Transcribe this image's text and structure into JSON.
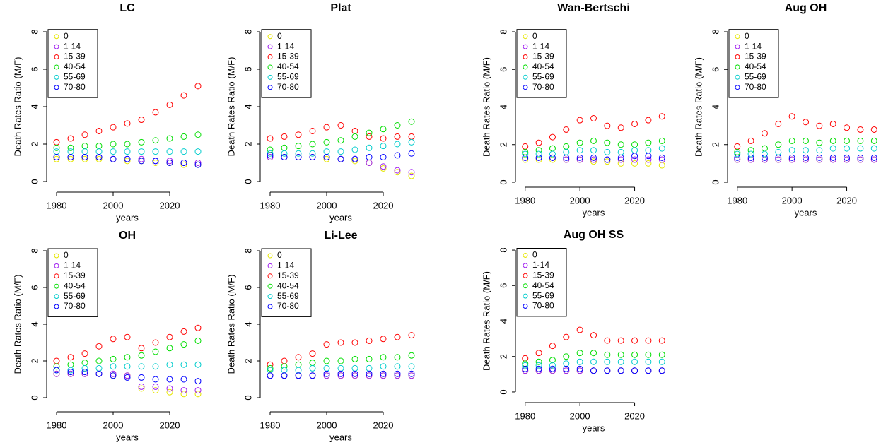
{
  "chart_data": [
    {
      "type": "scatter",
      "title": "LC",
      "xlabel": "years",
      "ylabel": "Death Rates Ratio (M/F)",
      "legend": "topleft",
      "xlim": [
        1978,
        2032
      ],
      "ylim": [
        -0.5,
        8.5
      ],
      "xticks": [
        1980,
        2000,
        2020
      ],
      "yticks": [
        0,
        2,
        4,
        6,
        8
      ],
      "x": [
        1980,
        1985,
        1990,
        1995,
        2000,
        2005,
        2010,
        2015,
        2020,
        2025,
        2030
      ],
      "series": [
        {
          "name": "0",
          "color": "#e6e600",
          "values": [
            1.2,
            1.2,
            1.2,
            1.2,
            1.2,
            1.1,
            1.1,
            1.0,
            1.0,
            0.9,
            0.9
          ]
        },
        {
          "name": "1-14",
          "color": "#a020f0",
          "values": [
            1.3,
            1.3,
            1.3,
            1.3,
            1.2,
            1.2,
            1.2,
            1.1,
            1.1,
            1.0,
            1.0
          ]
        },
        {
          "name": "15-39",
          "color": "#ff0000",
          "values": [
            2.1,
            2.3,
            2.5,
            2.7,
            2.9,
            3.1,
            3.3,
            3.7,
            4.1,
            4.6,
            5.1
          ]
        },
        {
          "name": "40-54",
          "color": "#00dd00",
          "values": [
            1.8,
            1.8,
            1.9,
            1.9,
            2.0,
            2.0,
            2.1,
            2.2,
            2.3,
            2.4,
            2.5
          ]
        },
        {
          "name": "55-69",
          "color": "#00cccc",
          "values": [
            1.6,
            1.6,
            1.6,
            1.6,
            1.6,
            1.6,
            1.6,
            1.6,
            1.6,
            1.6,
            1.6
          ]
        },
        {
          "name": "70-80",
          "color": "#0000ff",
          "values": [
            1.3,
            1.3,
            1.3,
            1.3,
            1.2,
            1.2,
            1.1,
            1.1,
            1.0,
            1.0,
            0.9
          ]
        }
      ]
    },
    {
      "type": "scatter",
      "title": "Plat",
      "xlabel": "years",
      "ylabel": "Death Rates Ratio (M/F)",
      "legend": "topleft",
      "xlim": [
        1978,
        2032
      ],
      "ylim": [
        -0.5,
        8.5
      ],
      "xticks": [
        1980,
        2000,
        2020
      ],
      "yticks": [
        0,
        2,
        4,
        6,
        8
      ],
      "x": [
        1980,
        1985,
        1990,
        1995,
        2000,
        2005,
        2010,
        2015,
        2020,
        2025,
        2030
      ],
      "series": [
        {
          "name": "0",
          "color": "#e6e600",
          "values": [
            1.3,
            1.3,
            1.3,
            1.3,
            1.2,
            1.2,
            1.1,
            1.0,
            0.7,
            0.5,
            0.3
          ]
        },
        {
          "name": "1-14",
          "color": "#a020f0",
          "values": [
            1.3,
            1.3,
            1.3,
            1.3,
            1.3,
            1.2,
            1.2,
            1.0,
            0.8,
            0.6,
            0.5
          ]
        },
        {
          "name": "15-39",
          "color": "#ff0000",
          "values": [
            2.3,
            2.4,
            2.5,
            2.7,
            2.9,
            3.0,
            2.7,
            2.4,
            2.3,
            2.4,
            2.4
          ]
        },
        {
          "name": "40-54",
          "color": "#00dd00",
          "values": [
            1.7,
            1.8,
            1.9,
            2.0,
            2.1,
            2.2,
            2.4,
            2.6,
            2.8,
            3.0,
            3.2
          ]
        },
        {
          "name": "55-69",
          "color": "#00cccc",
          "values": [
            1.5,
            1.5,
            1.5,
            1.5,
            1.6,
            1.6,
            1.7,
            1.8,
            1.9,
            2.0,
            2.1
          ]
        },
        {
          "name": "70-80",
          "color": "#0000ff",
          "values": [
            1.4,
            1.3,
            1.3,
            1.3,
            1.3,
            1.2,
            1.2,
            1.3,
            1.3,
            1.4,
            1.5
          ]
        }
      ]
    },
    {
      "type": "scatter",
      "title": "Wan-Bertschi",
      "xlabel": "years",
      "ylabel": "Death Rates Ratio (M/F)",
      "legend": "topleft",
      "xlim": [
        1978,
        2032
      ],
      "ylim": [
        -0.5,
        8.5
      ],
      "xticks": [
        1980,
        2000,
        2020
      ],
      "yticks": [
        0,
        2,
        4,
        6,
        8
      ],
      "x": [
        1980,
        1985,
        1990,
        1995,
        2000,
        2005,
        2010,
        2015,
        2020,
        2025,
        2030
      ],
      "series": [
        {
          "name": "0",
          "color": "#e6e600",
          "values": [
            1.2,
            1.2,
            1.2,
            1.2,
            1.2,
            1.1,
            1.1,
            1.0,
            1.0,
            1.0,
            0.9
          ]
        },
        {
          "name": "1-14",
          "color": "#a020f0",
          "values": [
            1.3,
            1.3,
            1.3,
            1.2,
            1.2,
            1.2,
            1.2,
            1.2,
            1.2,
            1.2,
            1.2
          ]
        },
        {
          "name": "15-39",
          "color": "#ff0000",
          "values": [
            1.9,
            2.1,
            2.4,
            2.8,
            3.3,
            3.4,
            3.0,
            2.9,
            3.1,
            3.3,
            3.5
          ]
        },
        {
          "name": "40-54",
          "color": "#00dd00",
          "values": [
            1.6,
            1.7,
            1.8,
            1.9,
            2.1,
            2.2,
            2.1,
            2.0,
            2.0,
            2.1,
            2.2
          ]
        },
        {
          "name": "55-69",
          "color": "#00cccc",
          "values": [
            1.5,
            1.5,
            1.5,
            1.6,
            1.7,
            1.7,
            1.6,
            1.6,
            1.7,
            1.7,
            1.8
          ]
        },
        {
          "name": "70-80",
          "color": "#0000ff",
          "values": [
            1.3,
            1.3,
            1.3,
            1.3,
            1.3,
            1.3,
            1.2,
            1.3,
            1.4,
            1.4,
            1.3
          ]
        }
      ]
    },
    {
      "type": "scatter",
      "title": "Aug OH",
      "xlabel": "years",
      "ylabel": "Death Rates Ratio (M/F)",
      "legend": "topleft",
      "xlim": [
        1978,
        2032
      ],
      "ylim": [
        -0.5,
        8.5
      ],
      "xticks": [
        1980,
        2000,
        2020
      ],
      "yticks": [
        0,
        2,
        4,
        6,
        8
      ],
      "x": [
        1980,
        1985,
        1990,
        1995,
        2000,
        2005,
        2010,
        2015,
        2020,
        2025,
        2030
      ],
      "series": [
        {
          "name": "0",
          "color": "#e6e600",
          "values": [
            1.2,
            1.2,
            1.2,
            1.2,
            1.2,
            1.2,
            1.2,
            1.2,
            1.2,
            1.2,
            1.2
          ]
        },
        {
          "name": "1-14",
          "color": "#a020f0",
          "values": [
            1.2,
            1.2,
            1.2,
            1.2,
            1.2,
            1.2,
            1.2,
            1.2,
            1.2,
            1.2,
            1.2
          ]
        },
        {
          "name": "15-39",
          "color": "#ff0000",
          "values": [
            1.9,
            2.2,
            2.6,
            3.1,
            3.5,
            3.2,
            3.0,
            3.1,
            2.9,
            2.8,
            2.8
          ]
        },
        {
          "name": "40-54",
          "color": "#00dd00",
          "values": [
            1.6,
            1.7,
            1.8,
            2.0,
            2.2,
            2.2,
            2.1,
            2.2,
            2.2,
            2.2,
            2.2
          ]
        },
        {
          "name": "55-69",
          "color": "#00cccc",
          "values": [
            1.5,
            1.5,
            1.5,
            1.6,
            1.7,
            1.7,
            1.7,
            1.8,
            1.8,
            1.8,
            1.8
          ]
        },
        {
          "name": "70-80",
          "color": "#0000ff",
          "values": [
            1.3,
            1.3,
            1.3,
            1.3,
            1.3,
            1.3,
            1.3,
            1.3,
            1.3,
            1.3,
            1.3
          ]
        }
      ]
    },
    {
      "type": "scatter",
      "title": "OH",
      "xlabel": "years",
      "ylabel": "Death Rates Ratio (M/F)",
      "legend": "topleft",
      "xlim": [
        1978,
        2032
      ],
      "ylim": [
        -0.5,
        8.5
      ],
      "xticks": [
        1980,
        2000,
        2020
      ],
      "yticks": [
        0,
        2,
        4,
        6,
        8
      ],
      "x": [
        1980,
        1985,
        1990,
        1995,
        2000,
        2005,
        2010,
        2015,
        2020,
        2025,
        2030
      ],
      "series": [
        {
          "name": "0",
          "color": "#e6e600",
          "values": [
            1.3,
            1.3,
            1.3,
            1.3,
            1.2,
            1.2,
            0.5,
            0.4,
            0.3,
            0.2,
            0.2
          ]
        },
        {
          "name": "1-14",
          "color": "#a020f0",
          "values": [
            1.3,
            1.3,
            1.3,
            1.3,
            1.3,
            1.2,
            0.6,
            0.6,
            0.5,
            0.4,
            0.4
          ]
        },
        {
          "name": "15-39",
          "color": "#ff0000",
          "values": [
            2.0,
            2.2,
            2.4,
            2.8,
            3.2,
            3.3,
            2.7,
            3.0,
            3.3,
            3.6,
            3.8
          ]
        },
        {
          "name": "40-54",
          "color": "#00dd00",
          "values": [
            1.7,
            1.8,
            1.9,
            2.0,
            2.1,
            2.2,
            2.3,
            2.5,
            2.7,
            2.9,
            3.1
          ]
        },
        {
          "name": "55-69",
          "color": "#00cccc",
          "values": [
            1.5,
            1.5,
            1.6,
            1.6,
            1.7,
            1.7,
            1.7,
            1.7,
            1.8,
            1.8,
            1.8
          ]
        },
        {
          "name": "70-80",
          "color": "#0000ff",
          "values": [
            1.5,
            1.4,
            1.4,
            1.3,
            1.2,
            1.1,
            1.1,
            1.0,
            1.0,
            1.0,
            0.9
          ]
        }
      ]
    },
    {
      "type": "scatter",
      "title": "Li-Lee",
      "xlabel": "years",
      "ylabel": "Death Rates Ratio (M/F)",
      "legend": "topleft",
      "xlim": [
        1978,
        2032
      ],
      "ylim": [
        -0.5,
        8.5
      ],
      "xticks": [
        1980,
        2000,
        2020
      ],
      "yticks": [
        0,
        2,
        4,
        6,
        8
      ],
      "x": [
        1980,
        1985,
        1990,
        1995,
        2000,
        2005,
        2010,
        2015,
        2020,
        2025,
        2030
      ],
      "series": [
        {
          "name": "0",
          "color": "#e6e600",
          "values": [
            1.2,
            1.2,
            1.2,
            1.2,
            1.2,
            1.2,
            1.2,
            1.2,
            1.2,
            1.2,
            1.2
          ]
        },
        {
          "name": "1-14",
          "color": "#a020f0",
          "values": [
            1.2,
            1.2,
            1.2,
            1.2,
            1.2,
            1.2,
            1.2,
            1.2,
            1.2,
            1.2,
            1.2
          ]
        },
        {
          "name": "15-39",
          "color": "#ff0000",
          "values": [
            1.8,
            2.0,
            2.2,
            2.4,
            2.9,
            3.0,
            3.0,
            3.1,
            3.2,
            3.3,
            3.4
          ]
        },
        {
          "name": "40-54",
          "color": "#00dd00",
          "values": [
            1.6,
            1.7,
            1.8,
            1.9,
            2.0,
            2.0,
            2.1,
            2.1,
            2.2,
            2.2,
            2.3
          ]
        },
        {
          "name": "55-69",
          "color": "#00cccc",
          "values": [
            1.5,
            1.5,
            1.5,
            1.6,
            1.6,
            1.6,
            1.6,
            1.6,
            1.7,
            1.7,
            1.7
          ]
        },
        {
          "name": "70-80",
          "color": "#0000ff",
          "values": [
            1.2,
            1.2,
            1.2,
            1.2,
            1.3,
            1.3,
            1.3,
            1.3,
            1.3,
            1.3,
            1.3
          ]
        }
      ]
    },
    {
      "type": "scatter",
      "title": "Aug OH SS",
      "xlabel": "years",
      "ylabel": "Death Rates Ratio (M/F)",
      "legend": "topleft",
      "xlim": [
        1978,
        2032
      ],
      "ylim": [
        -0.5,
        8.5
      ],
      "xticks": [
        1980,
        2000,
        2020
      ],
      "yticks": [
        0,
        2,
        4,
        6,
        8
      ],
      "x": [
        1980,
        1985,
        1990,
        1995,
        2000,
        2005,
        2010,
        2015,
        2020,
        2025,
        2030
      ],
      "series": [
        {
          "name": "0",
          "color": "#e6e600",
          "values": [
            1.2,
            1.2,
            1.2,
            1.2,
            1.2,
            1.2,
            1.2,
            1.2,
            1.2,
            1.2,
            1.2
          ]
        },
        {
          "name": "1-14",
          "color": "#a020f0",
          "values": [
            1.2,
            1.2,
            1.2,
            1.2,
            1.2,
            1.2,
            1.2,
            1.2,
            1.2,
            1.2,
            1.2
          ]
        },
        {
          "name": "15-39",
          "color": "#ff0000",
          "values": [
            1.9,
            2.2,
            2.6,
            3.1,
            3.5,
            3.2,
            2.9,
            2.9,
            2.9,
            2.9,
            2.9
          ]
        },
        {
          "name": "40-54",
          "color": "#00dd00",
          "values": [
            1.6,
            1.7,
            1.8,
            2.0,
            2.2,
            2.2,
            2.1,
            2.1,
            2.1,
            2.1,
            2.1
          ]
        },
        {
          "name": "55-69",
          "color": "#00cccc",
          "values": [
            1.5,
            1.5,
            1.5,
            1.6,
            1.7,
            1.7,
            1.7,
            1.7,
            1.7,
            1.7,
            1.7
          ]
        },
        {
          "name": "70-80",
          "color": "#0000ff",
          "values": [
            1.3,
            1.3,
            1.3,
            1.3,
            1.3,
            1.2,
            1.2,
            1.2,
            1.2,
            1.2,
            1.2
          ]
        }
      ]
    }
  ]
}
